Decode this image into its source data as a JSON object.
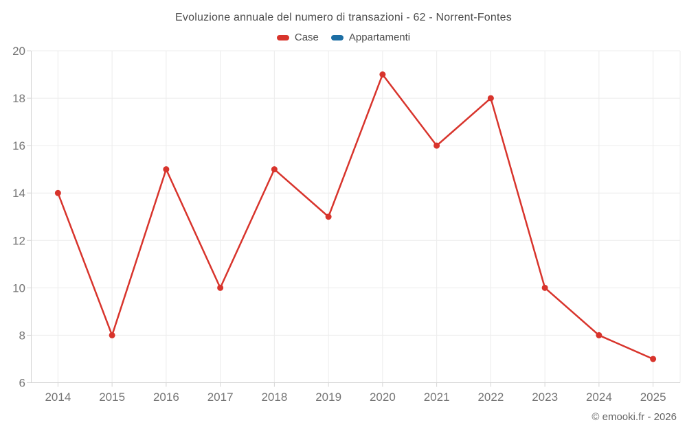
{
  "title": "Evoluzione annuale del numero di transazioni - 62 - Norrent-Fontes",
  "footer": "© emooki.fr - 2026",
  "legend": {
    "items": [
      {
        "label": "Case",
        "color": "#d8342c"
      },
      {
        "label": "Appartamenti",
        "color": "#1c6ea4"
      }
    ]
  },
  "chart_data": {
    "type": "line",
    "title": "Evoluzione annuale del numero di transazioni - 62 - Norrent-Fontes",
    "categories": [
      "2014",
      "2015",
      "2016",
      "2017",
      "2018",
      "2019",
      "2020",
      "2021",
      "2022",
      "2023",
      "2024",
      "2025"
    ],
    "series": [
      {
        "name": "Case",
        "color": "#d8342c",
        "values": [
          14,
          8,
          15,
          10,
          15,
          13,
          19,
          16,
          18,
          10,
          8,
          7
        ]
      },
      {
        "name": "Appartamenti",
        "color": "#1c6ea4",
        "values": []
      }
    ],
    "xlabel": "",
    "ylabel": "",
    "ylim": [
      6,
      20
    ],
    "yticks": [
      6,
      8,
      10,
      12,
      14,
      16,
      18,
      20
    ],
    "grid": true,
    "legend_position": "top"
  },
  "colors": {
    "background": "#ffffff",
    "text_title": "#4d4d4d",
    "text_axis": "#757575",
    "grid": "#ececec",
    "axis_line": "#d4d4d4"
  }
}
